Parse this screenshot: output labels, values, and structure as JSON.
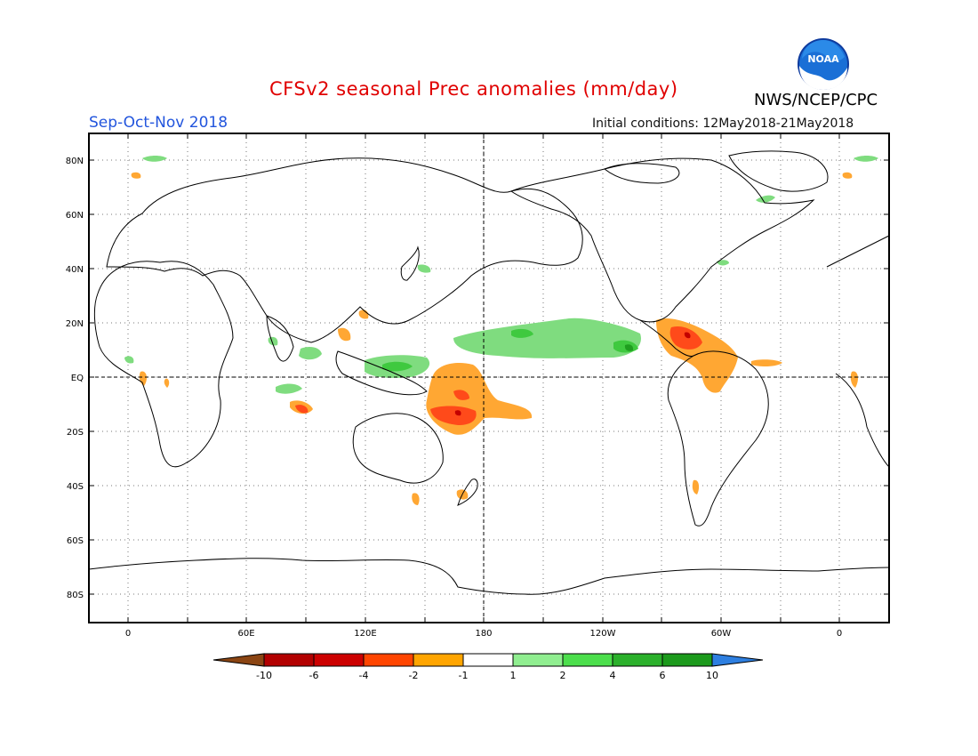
{
  "header": {
    "title": "CFSv2 seasonal Prec anomalies (mm/day)",
    "season": "Sep-Oct-Nov 2018",
    "initial_conditions": "Initial conditions: 12May2018-21May2018",
    "agency": "NWS/NCEP/CPC",
    "logo_text": "NOAA"
  },
  "map": {
    "lat_labels": [
      "80N",
      "60N",
      "40N",
      "20N",
      "EQ",
      "20S",
      "40S",
      "60S",
      "80S"
    ],
    "lon_labels": [
      "0",
      "60E",
      "120E",
      "180",
      "120W",
      "60W",
      "0"
    ]
  },
  "legend": {
    "tick_labels": [
      "-10",
      "-6",
      "-4",
      "-2",
      "-1",
      "1",
      "2",
      "4",
      "6",
      "10"
    ],
    "colors": [
      "#8b4513",
      "#b20000",
      "#cc0000",
      "#ff4500",
      "#ffa500",
      "#ffffff",
      "#90ee90",
      "#4cde4c",
      "#2bb02b",
      "#1c9a1c",
      "#2e7fe0"
    ]
  }
}
